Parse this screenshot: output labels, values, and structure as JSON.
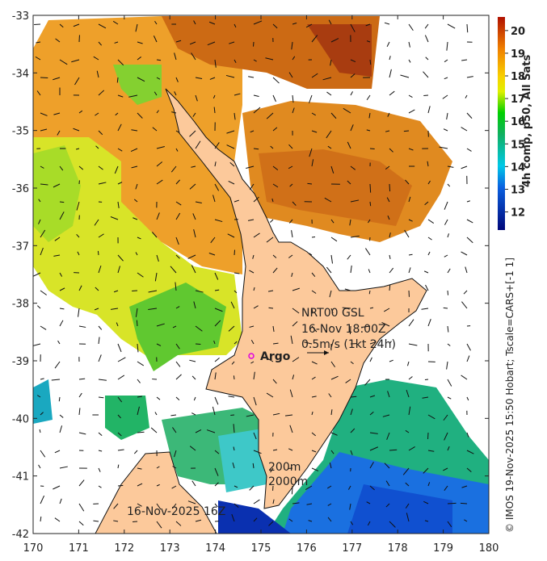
{
  "map": {
    "x_ticks": [
      "170",
      "171",
      "172",
      "173",
      "174",
      "175",
      "176",
      "177",
      "178",
      "179",
      "180"
    ],
    "y_ticks": [
      "-33",
      "-34",
      "-35",
      "-36",
      "-37",
      "-38",
      "-39",
      "-40",
      "-41",
      "-42"
    ],
    "land_color": "#fcc99b",
    "annotations": {
      "product_line1": "NRT00 GSL",
      "product_line2": "16-Nov 18:00Z",
      "product_line3": "0.5m/s (1kt 24h)",
      "argo_label": "Argo",
      "depth_200": "200m",
      "depth_2000": "2000m",
      "date_label": "16-Nov-2025 16Z"
    }
  },
  "colorbar": {
    "title": "4h comp, p50, All Sats",
    "ticks": [
      "12",
      "13",
      "14",
      "15",
      "16",
      "17",
      "18",
      "19",
      "20"
    ],
    "range": [
      11.2,
      20.6
    ]
  },
  "credit": "© IMOS 19-Nov-2025 15:50 Hobart; Tscale=CARS+[-1 1]"
}
